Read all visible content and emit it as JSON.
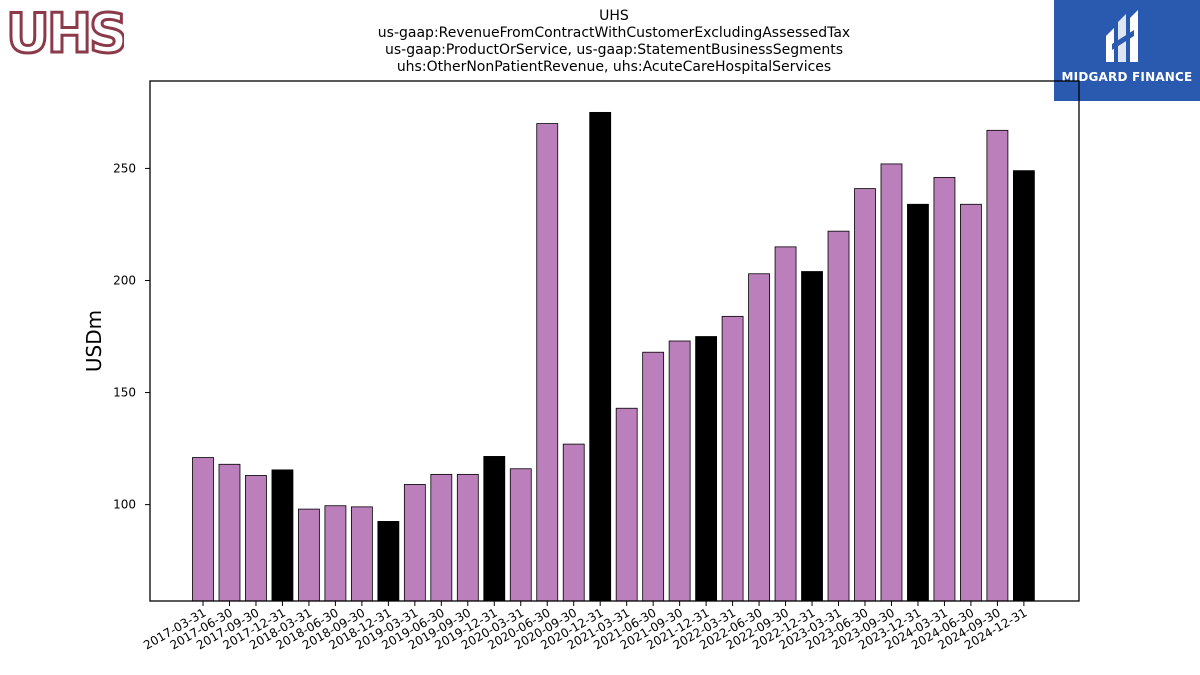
{
  "logos": {
    "left_text": "UHS",
    "right_text": "MIDGARD FINANCE"
  },
  "colors": {
    "quarter_bar": "#bb7fbb",
    "year_end_bar": "#000000",
    "uhs_brand": "#8b3a4a",
    "midgard_bg": "#2a5ab0"
  },
  "chart_data": {
    "type": "bar",
    "title": [
      "UHS",
      "us-gaap:RevenueFromContractWithCustomerExcludingAssessedTax",
      "us-gaap:ProductOrService, us-gaap:StatementBusinessSegments",
      "uhs:OtherNonPatientRevenue, uhs:AcuteCareHospitalServices"
    ],
    "ylabel": "USDm",
    "xlabel": "",
    "ylim": [
      57,
      289
    ],
    "yticks": [
      100,
      150,
      200,
      250
    ],
    "grid": false,
    "categories": [
      "2017-03-31",
      "2017-06-30",
      "2017-09-30",
      "2017-12-31",
      "2018-03-31",
      "2018-06-30",
      "2018-09-30",
      "2018-12-31",
      "2019-03-31",
      "2019-06-30",
      "2019-09-30",
      "2019-12-31",
      "2020-03-31",
      "2020-06-30",
      "2020-09-30",
      "2020-12-31",
      "2021-03-31",
      "2021-06-30",
      "2021-09-30",
      "2021-12-31",
      "2022-03-31",
      "2022-06-30",
      "2022-09-30",
      "2022-12-31",
      "2023-03-31",
      "2023-06-30",
      "2023-09-30",
      "2023-12-31",
      "2024-03-31",
      "2024-06-30",
      "2024-09-30",
      "2024-12-31"
    ],
    "values": [
      121,
      118,
      113,
      115.5,
      98,
      99.5,
      99,
      92.5,
      109,
      113.5,
      113.5,
      121.5,
      116,
      270,
      127,
      275,
      143,
      168,
      173,
      175,
      184,
      203,
      215,
      204,
      222,
      241,
      252,
      234,
      246,
      234,
      267,
      249
    ],
    "year_end": [
      false,
      false,
      false,
      true,
      false,
      false,
      false,
      true,
      false,
      false,
      false,
      true,
      false,
      false,
      false,
      true,
      false,
      false,
      false,
      true,
      false,
      false,
      false,
      true,
      false,
      false,
      false,
      true,
      false,
      false,
      false,
      true
    ]
  }
}
